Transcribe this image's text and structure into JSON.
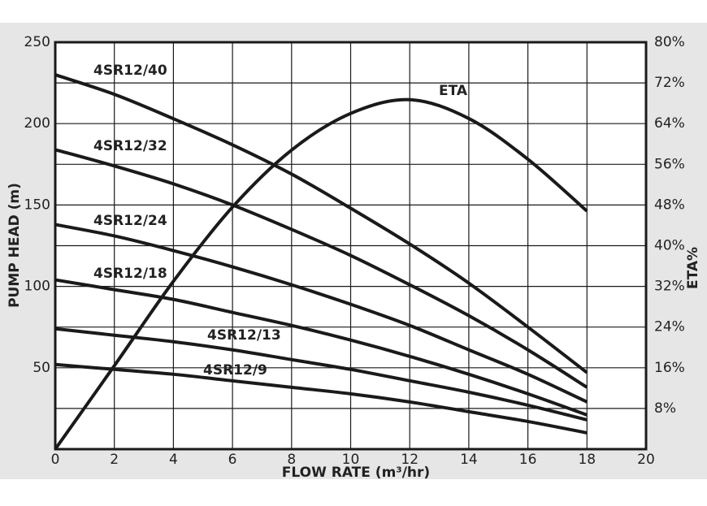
{
  "chart_data": {
    "type": "line",
    "x_label": "FLOW RATE (m³/hr)",
    "y_label": "PUMP HEAD (m)",
    "y2_label": "ETA%",
    "x": [
      0,
      2,
      4,
      6,
      8,
      10,
      12,
      14,
      16,
      18
    ],
    "series": [
      {
        "name": "4SR12/40",
        "color": "#1a1a1a",
        "values": [
          230,
          218,
          203,
          187,
          169,
          148,
          126,
          102,
          75,
          47
        ]
      },
      {
        "name": "4SR12/32",
        "color": "#1a1a1a",
        "values": [
          184,
          174,
          163,
          150,
          135,
          119,
          101,
          82,
          61,
          38
        ]
      },
      {
        "name": "4SR12/24",
        "color": "#1a1a1a",
        "values": [
          138,
          131,
          122,
          112,
          101,
          89,
          76,
          61,
          46,
          29
        ]
      },
      {
        "name": "4SR12/18",
        "color": "#1a1a1a",
        "values": [
          104,
          98,
          92,
          84,
          76,
          67,
          57,
          46,
          34,
          21
        ]
      },
      {
        "name": "4SR12/13",
        "color": "#1a1a1a",
        "values": [
          74,
          70,
          66,
          61,
          55,
          49,
          42,
          35,
          27,
          18
        ]
      },
      {
        "name": "4SR12/9",
        "color": "#1a1a1a",
        "values": [
          52,
          49,
          46,
          42,
          38,
          34,
          29,
          23,
          17,
          10
        ]
      },
      {
        "name": "ETA",
        "color": "#1a1a1a",
        "axis": "y2",
        "values": [
          0,
          16.4,
          33,
          47.6,
          58.8,
          66,
          68.7,
          65,
          57,
          46.8
        ]
      }
    ],
    "xlim": [
      0,
      20
    ],
    "xticks": [
      0,
      2,
      4,
      6,
      8,
      10,
      12,
      14,
      16,
      18,
      20
    ],
    "ylim": [
      0,
      250
    ],
    "yticks": [
      50,
      100,
      150,
      200,
      250
    ],
    "y2lim": [
      0,
      80
    ],
    "y2ticks": [
      {
        "value": 8,
        "label": "8%"
      },
      {
        "value": 16,
        "label": "16%"
      },
      {
        "value": 24,
        "label": "24%"
      },
      {
        "value": 32,
        "label": "32%"
      },
      {
        "value": 40,
        "label": "40%"
      },
      {
        "value": 48,
        "label": "48%"
      },
      {
        "value": 56,
        "label": "56%"
      },
      {
        "value": 64,
        "label": "64%"
      },
      {
        "value": 72,
        "label": "72%"
      },
      {
        "value": 80,
        "label": "80%"
      }
    ],
    "grid": true
  }
}
